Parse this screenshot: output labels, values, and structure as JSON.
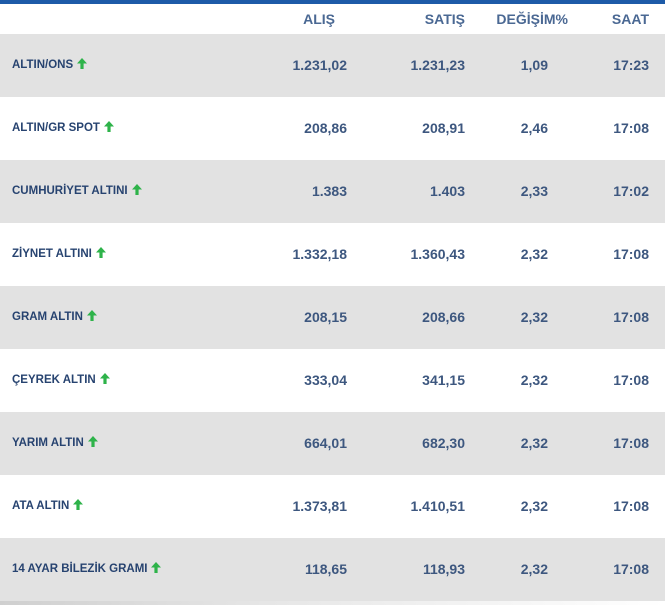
{
  "header": {
    "alis": "ALIŞ",
    "satis": "SATIŞ",
    "degisim": "DEĞİŞİM%",
    "saat": "SAAT"
  },
  "colors": {
    "accent_bar": "#1d5ba8",
    "arrow_up": "#2eb34a",
    "row_shade": "#e2e2e2",
    "text": "#3d577f"
  },
  "rows": [
    {
      "name": "ALTIN/ONS",
      "alis": "1.231,02",
      "satis": "1.231,23",
      "degisim": "1,09",
      "saat": "17:23",
      "trend_icon": "arrow-up-icon"
    },
    {
      "name": "ALTIN/GR SPOT",
      "alis": "208,86",
      "satis": "208,91",
      "degisim": "2,46",
      "saat": "17:08",
      "trend_icon": "arrow-up-icon"
    },
    {
      "name": "CUMHURİYET ALTINI",
      "alis": "1.383",
      "satis": "1.403",
      "degisim": "2,33",
      "saat": "17:02",
      "trend_icon": "arrow-up-icon"
    },
    {
      "name": "ZİYNET ALTINI",
      "alis": "1.332,18",
      "satis": "1.360,43",
      "degisim": "2,32",
      "saat": "17:08",
      "trend_icon": "arrow-up-icon"
    },
    {
      "name": "GRAM ALTIN",
      "alis": "208,15",
      "satis": "208,66",
      "degisim": "2,32",
      "saat": "17:08",
      "trend_icon": "arrow-up-icon"
    },
    {
      "name": "ÇEYREK ALTIN",
      "alis": "333,04",
      "satis": "341,15",
      "degisim": "2,32",
      "saat": "17:08",
      "trend_icon": "arrow-up-icon"
    },
    {
      "name": "YARIM ALTIN",
      "alis": "664,01",
      "satis": "682,30",
      "degisim": "2,32",
      "saat": "17:08",
      "trend_icon": "arrow-up-icon"
    },
    {
      "name": "ATA ALTIN",
      "alis": "1.373,81",
      "satis": "1.410,51",
      "degisim": "2,32",
      "saat": "17:08",
      "trend_icon": "arrow-up-icon"
    },
    {
      "name": "14 AYAR BİLEZİK GRAMI",
      "alis": "118,65",
      "satis": "118,93",
      "degisim": "2,32",
      "saat": "17:08",
      "trend_icon": "arrow-up-icon"
    }
  ]
}
